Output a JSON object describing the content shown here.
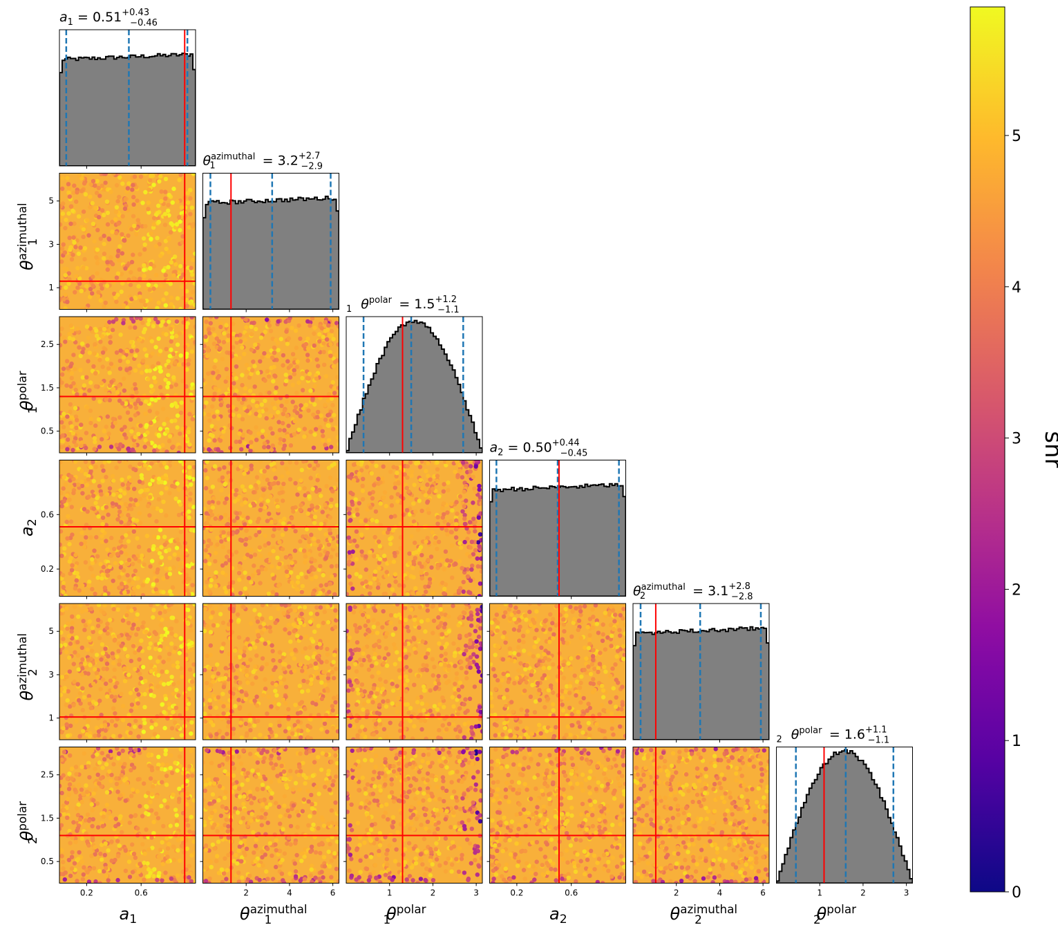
{
  "chart_data": {
    "type": "corner-plot",
    "params": [
      {
        "key": "a1",
        "sym": "a",
        "sub": "1",
        "sup": "",
        "range": [
          0,
          1
        ],
        "ticks": [
          0.2,
          0.6
        ],
        "tick_labels": [
          "0.2",
          "0.6"
        ],
        "truth": 0.92,
        "quantiles": [
          0.05,
          0.51,
          0.94
        ],
        "title": {
          "value": "0.51",
          "plus": "+0.43",
          "minus": "−0.46"
        }
      },
      {
        "key": "theta1_az",
        "sym": "θ",
        "sub": "1",
        "sup": "azimuthal",
        "range": [
          0,
          6.283
        ],
        "ticks": [
          2,
          4,
          6
        ],
        "tick_labels": [
          "2",
          "4",
          "6"
        ],
        "tick_labels_y": [
          "1",
          "3",
          "5"
        ],
        "ticks_y": [
          1,
          3,
          5
        ],
        "truth": 1.3,
        "quantiles": [
          0.35,
          3.2,
          5.9
        ],
        "title": {
          "value": "3.2",
          "plus": "+2.7",
          "minus": "−2.9"
        }
      },
      {
        "key": "theta1_pol",
        "sym": "θ",
        "sub": "1",
        "sup": "polar",
        "range": [
          0,
          3.1416
        ],
        "ticks": [
          1,
          2,
          3
        ],
        "tick_labels": [
          "1",
          "2",
          "3"
        ],
        "tick_labels_y": [
          "0.5",
          "1.5",
          "2.5"
        ],
        "ticks_y": [
          0.5,
          1.5,
          2.5
        ],
        "truth": 1.3,
        "quantiles": [
          0.4,
          1.5,
          2.7
        ],
        "title": {
          "value": "1.5",
          "plus": "+1.2",
          "minus": "−1.1"
        }
      },
      {
        "key": "a2",
        "sym": "a",
        "sub": "2",
        "sup": "",
        "range": [
          0,
          1
        ],
        "ticks": [
          0.2,
          0.6
        ],
        "tick_labels": [
          "0.2",
          "0.6"
        ],
        "truth": 0.51,
        "quantiles": [
          0.05,
          0.5,
          0.95
        ],
        "title": {
          "value": "0.50",
          "plus": "+0.44",
          "minus": "−0.45"
        }
      },
      {
        "key": "theta2_az",
        "sym": "θ",
        "sub": "2",
        "sup": "azimuthal",
        "range": [
          0,
          6.283
        ],
        "ticks": [
          2,
          4,
          6
        ],
        "tick_labels": [
          "2",
          "4",
          "6"
        ],
        "tick_labels_y": [
          "1",
          "3",
          "5"
        ],
        "ticks_y": [
          1,
          3,
          5
        ],
        "truth": 1.05,
        "quantiles": [
          0.35,
          3.1,
          5.9
        ],
        "title": {
          "value": "3.1",
          "plus": "+2.8",
          "minus": "−2.8"
        }
      },
      {
        "key": "theta2_pol",
        "sym": "θ",
        "sub": "2",
        "sup": "polar",
        "range": [
          0,
          3.1416
        ],
        "ticks": [
          1,
          2,
          3
        ],
        "tick_labels": [
          "1",
          "2",
          "3"
        ],
        "tick_labels_y": [
          "0.5",
          "1.5",
          "2.5"
        ],
        "ticks_y": [
          0.5,
          1.5,
          2.5
        ],
        "truth": 1.1,
        "quantiles": [
          0.45,
          1.6,
          2.7
        ],
        "title": {
          "value": "1.6",
          "plus": "+1.1",
          "minus": "−1.1"
        }
      }
    ],
    "hist_shapes": [
      "flat",
      "flat",
      "sine",
      "flat",
      "flat",
      "sine"
    ],
    "colorbar": {
      "label": "snr",
      "range": [
        0,
        5.85
      ],
      "ticks": [
        0,
        1,
        2,
        3,
        4,
        5
      ],
      "tick_labels": [
        "0",
        "1",
        "2",
        "3",
        "4",
        "5"
      ],
      "colormap": "plasma"
    },
    "colors": {
      "hist_fill": "#808080",
      "hist_edge": "#000000",
      "truth": "#ff0000",
      "quantile": "#1f77b4"
    }
  }
}
